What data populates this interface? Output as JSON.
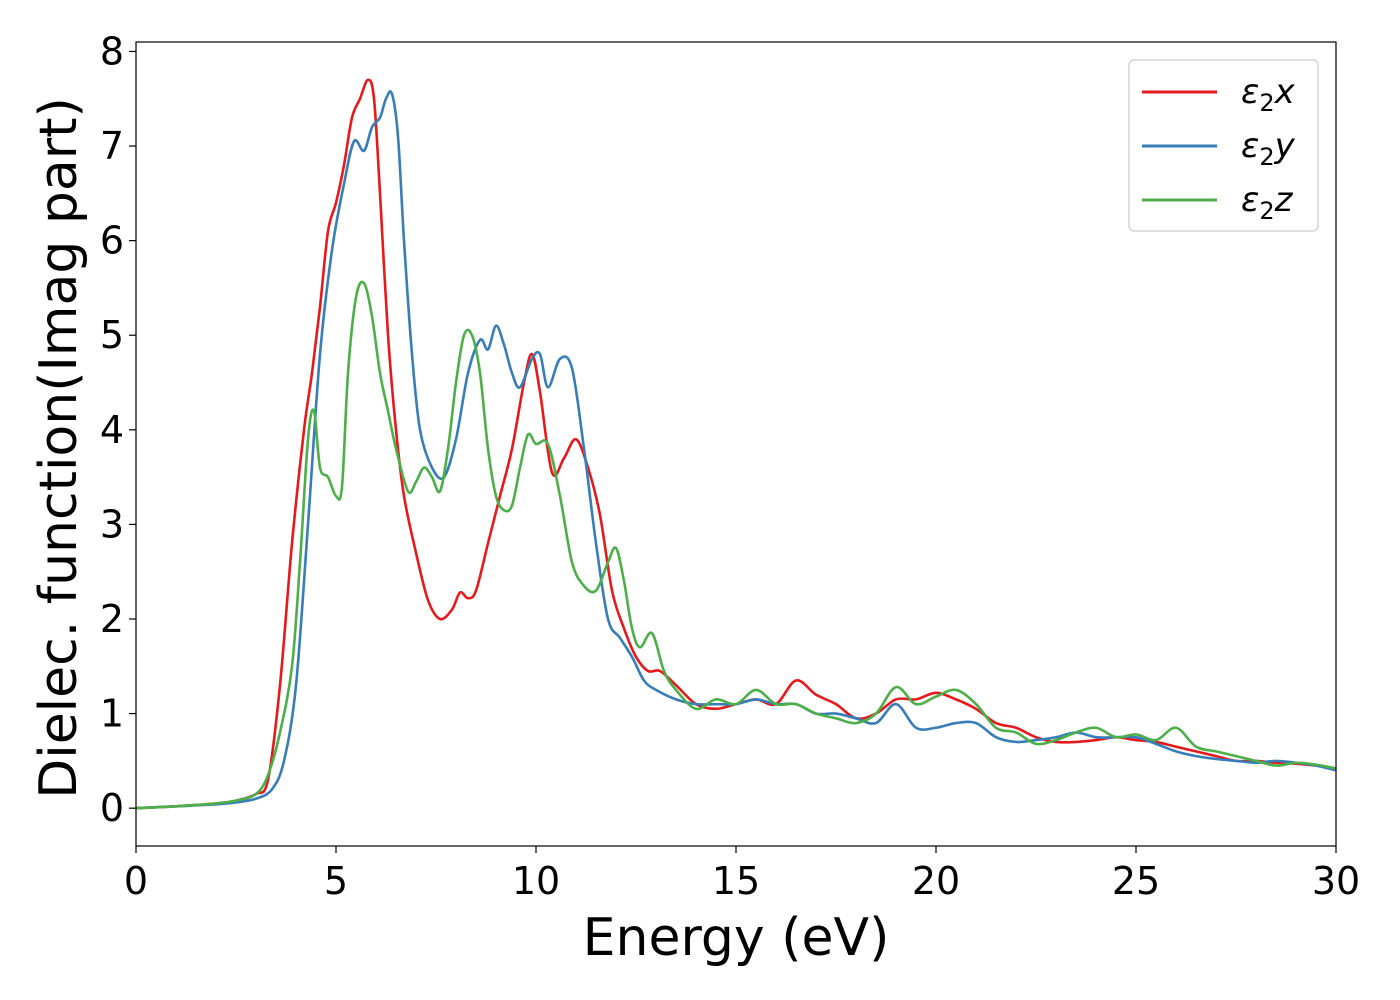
{
  "chart_data": {
    "type": "line",
    "title": "",
    "xlabel": "Energy (eV)",
    "ylabel": "Dielec. function(Imag part)",
    "xlim": [
      0,
      30
    ],
    "ylim": [
      -0.4,
      8.1
    ],
    "xticks": [
      0,
      5,
      10,
      15,
      20,
      25,
      30
    ],
    "yticks": [
      0,
      1,
      2,
      3,
      4,
      5,
      6,
      7,
      8
    ],
    "grid": false,
    "legend_position": "top-right",
    "series": [
      {
        "name": "ε₂x",
        "legend_base": "ε",
        "legend_sub": "2",
        "legend_var": "x",
        "color": "#e41a1c",
        "x": [
          0,
          1,
          2,
          2.5,
          3,
          3.3,
          3.6,
          3.9,
          4.2,
          4.4,
          4.6,
          4.8,
          5.0,
          5.2,
          5.4,
          5.6,
          5.8,
          5.95,
          6.1,
          6.3,
          6.5,
          6.7,
          7.0,
          7.3,
          7.6,
          7.9,
          8.1,
          8.3,
          8.5,
          8.8,
          9.1,
          9.4,
          9.7,
          9.9,
          10.1,
          10.4,
          10.7,
          11.0,
          11.3,
          11.6,
          11.9,
          12.2,
          12.5,
          12.8,
          13.1,
          13.5,
          14.0,
          14.5,
          15.0,
          15.5,
          16.0,
          16.5,
          17.0,
          17.5,
          18.0,
          18.5,
          19.0,
          19.5,
          20.0,
          20.5,
          21.0,
          21.5,
          22.0,
          22.5,
          23.0,
          23.5,
          24.0,
          24.5,
          25.0,
          25.5,
          26.0,
          26.5,
          27.0,
          27.5,
          28.0,
          28.5,
          29.0,
          29.5,
          30.0
        ],
        "values": [
          0.0,
          0.02,
          0.05,
          0.08,
          0.15,
          0.3,
          1.3,
          2.8,
          4.0,
          4.6,
          5.3,
          6.1,
          6.4,
          6.8,
          7.3,
          7.5,
          7.7,
          7.5,
          6.5,
          5.0,
          4.0,
          3.3,
          2.7,
          2.2,
          2.0,
          2.1,
          2.28,
          2.22,
          2.3,
          2.8,
          3.3,
          3.8,
          4.5,
          4.8,
          4.4,
          3.55,
          3.7,
          3.9,
          3.6,
          3.1,
          2.3,
          1.9,
          1.6,
          1.45,
          1.45,
          1.3,
          1.1,
          1.05,
          1.1,
          1.15,
          1.1,
          1.35,
          1.2,
          1.1,
          0.95,
          1.0,
          1.15,
          1.15,
          1.22,
          1.15,
          1.05,
          0.9,
          0.85,
          0.75,
          0.7,
          0.7,
          0.72,
          0.75,
          0.72,
          0.7,
          0.65,
          0.6,
          0.55,
          0.5,
          0.5,
          0.48,
          0.47,
          0.45,
          0.42
        ]
      },
      {
        "name": "ε₂y",
        "legend_base": "ε",
        "legend_sub": "2",
        "legend_var": "y",
        "color": "#377eb8",
        "x": [
          0,
          1,
          2,
          2.5,
          3,
          3.4,
          3.7,
          4.0,
          4.3,
          4.6,
          4.9,
          5.2,
          5.45,
          5.7,
          5.9,
          6.1,
          6.25,
          6.4,
          6.55,
          6.7,
          6.9,
          7.1,
          7.4,
          7.7,
          8.0,
          8.3,
          8.6,
          8.8,
          9.0,
          9.2,
          9.4,
          9.6,
          9.9,
          10.1,
          10.3,
          10.6,
          10.9,
          11.2,
          11.5,
          11.8,
          12.1,
          12.4,
          12.7,
          13.0,
          13.5,
          14.0,
          14.5,
          15.0,
          15.5,
          16.0,
          16.5,
          17.0,
          17.5,
          18.0,
          18.5,
          19.0,
          19.5,
          20.0,
          20.5,
          21.0,
          21.5,
          22.0,
          22.5,
          23.0,
          23.5,
          24.0,
          24.5,
          25.0,
          25.5,
          26.0,
          26.5,
          27.0,
          27.5,
          28.0,
          28.5,
          29.0,
          29.5,
          30.0
        ],
        "values": [
          0.0,
          0.02,
          0.04,
          0.06,
          0.1,
          0.2,
          0.5,
          1.3,
          3.0,
          4.8,
          5.9,
          6.6,
          7.05,
          6.95,
          7.2,
          7.3,
          7.5,
          7.55,
          7.1,
          6.0,
          4.8,
          4.0,
          3.6,
          3.5,
          3.9,
          4.6,
          4.95,
          4.85,
          5.1,
          4.9,
          4.6,
          4.45,
          4.75,
          4.8,
          4.45,
          4.75,
          4.65,
          3.8,
          2.8,
          2.0,
          1.8,
          1.6,
          1.35,
          1.25,
          1.15,
          1.1,
          1.1,
          1.1,
          1.15,
          1.1,
          1.1,
          1.0,
          1.0,
          0.95,
          0.9,
          1.1,
          0.85,
          0.85,
          0.9,
          0.9,
          0.75,
          0.7,
          0.72,
          0.75,
          0.8,
          0.75,
          0.75,
          0.75,
          0.68,
          0.6,
          0.55,
          0.52,
          0.5,
          0.48,
          0.5,
          0.48,
          0.45,
          0.4
        ]
      },
      {
        "name": "ε₂z",
        "legend_base": "ε",
        "legend_sub": "2",
        "legend_var": "z",
        "color": "#4daf4a",
        "x": [
          0,
          1,
          2,
          2.5,
          3,
          3.3,
          3.6,
          3.9,
          4.1,
          4.3,
          4.45,
          4.6,
          4.8,
          5.0,
          5.15,
          5.3,
          5.5,
          5.7,
          5.9,
          6.1,
          6.3,
          6.5,
          6.8,
          7.0,
          7.2,
          7.4,
          7.6,
          7.8,
          8.0,
          8.2,
          8.4,
          8.6,
          8.8,
          9.0,
          9.2,
          9.4,
          9.6,
          9.8,
          10.0,
          10.3,
          10.6,
          10.9,
          11.2,
          11.5,
          11.8,
          12.0,
          12.2,
          12.4,
          12.6,
          12.9,
          13.2,
          13.5,
          14.0,
          14.5,
          15.0,
          15.5,
          16.0,
          16.5,
          17.0,
          17.5,
          18.0,
          18.5,
          19.0,
          19.5,
          20.0,
          20.5,
          21.0,
          21.5,
          22.0,
          22.5,
          23.0,
          23.5,
          24.0,
          24.5,
          25.0,
          25.5,
          26.0,
          26.5,
          27.0,
          27.5,
          28.0,
          28.5,
          29.0,
          29.5,
          30.0
        ],
        "values": [
          0.0,
          0.02,
          0.05,
          0.08,
          0.15,
          0.35,
          0.8,
          1.5,
          2.6,
          3.9,
          4.2,
          3.6,
          3.5,
          3.3,
          3.4,
          4.6,
          5.4,
          5.55,
          5.2,
          4.6,
          4.2,
          3.8,
          3.35,
          3.45,
          3.6,
          3.5,
          3.35,
          3.8,
          4.5,
          5.0,
          5.0,
          4.6,
          3.8,
          3.3,
          3.15,
          3.2,
          3.6,
          3.95,
          3.85,
          3.85,
          3.3,
          2.6,
          2.35,
          2.3,
          2.6,
          2.75,
          2.4,
          1.9,
          1.7,
          1.85,
          1.45,
          1.25,
          1.05,
          1.15,
          1.1,
          1.25,
          1.1,
          1.1,
          1.0,
          0.95,
          0.9,
          1.0,
          1.28,
          1.1,
          1.18,
          1.25,
          1.1,
          0.85,
          0.8,
          0.68,
          0.72,
          0.8,
          0.85,
          0.75,
          0.78,
          0.72,
          0.85,
          0.65,
          0.6,
          0.55,
          0.5,
          0.45,
          0.48,
          0.46,
          0.42
        ]
      }
    ]
  }
}
